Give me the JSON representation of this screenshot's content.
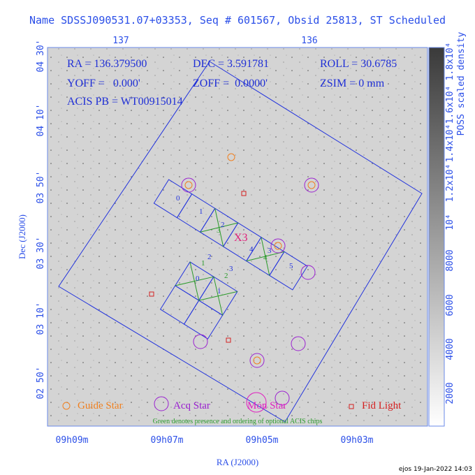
{
  "header": {
    "title": "Name SDSSJ090531.07+03353, Seq # 601567, Obsid 25813, ST Scheduled"
  },
  "axes": {
    "top_ticks": [
      "137",
      "136"
    ],
    "left_ticks": [
      "04 30'",
      "04 10'",
      "03 50'",
      "03 30'",
      "03 10'",
      "02 50'"
    ],
    "bottom_ticks": [
      "09h09m",
      "09h07m",
      "09h05m",
      "09h03m"
    ],
    "x_label": "RA (J2000)",
    "y_label": "Dec (J2000)"
  },
  "info": [
    "RA = 136.379500",
    "DEC = 3.591781",
    "ROLL = 30.6785",
    "YOFF =   0.000'",
    "ZOFF =  0.0000'",
    "ZSIM = 0 mm",
    "ACIS PB = WT00915014"
  ],
  "chips": {
    "s": [
      "0",
      "1",
      "2",
      "3",
      "4",
      "5"
    ],
    "i": [
      "0",
      "1",
      "2",
      "3"
    ],
    "s_order": [
      "3",
      "4"
    ],
    "i_order": [
      "1",
      "2"
    ],
    "marker": "X3"
  },
  "legend": [
    "Guide Star",
    "Acq Star",
    "Mon Star",
    "Fid Light"
  ],
  "note": "Green denotes presence and ordering of optional ACIS chips",
  "colorbar": {
    "label": "POSS scaled density",
    "ticks": [
      "2000",
      "4000",
      "6000",
      "8000",
      "10⁴",
      "1.2x10⁴",
      "1.4x10⁴",
      "1.6x10⁴",
      "1.8x10⁴"
    ]
  },
  "footer": "ejos 19-Jan-2022 14:03"
}
